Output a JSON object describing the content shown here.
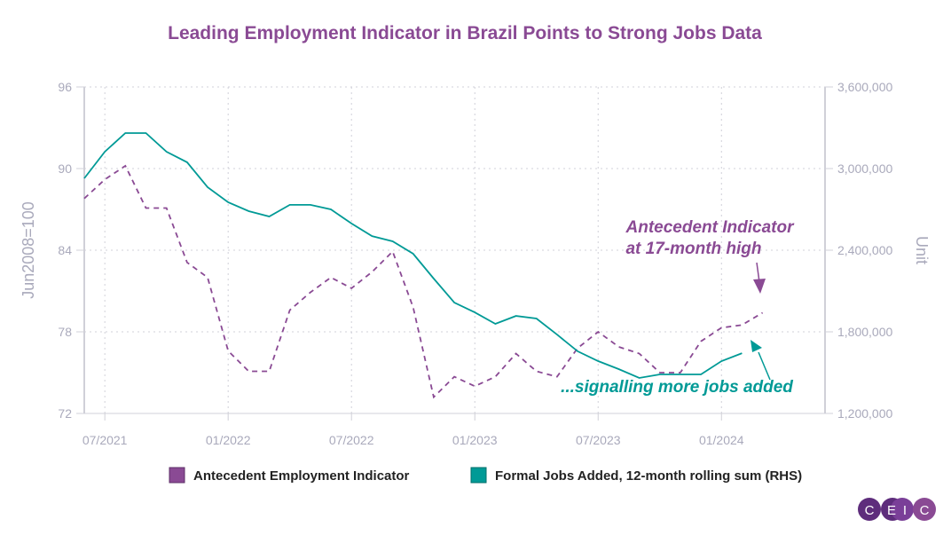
{
  "chart_data": {
    "type": "line",
    "title": "Leading Employment Indicator in Brazil Points to Strong Jobs Data",
    "ylabel": "Jun2008=100",
    "y2label": "Unit",
    "ylim": [
      72,
      96
    ],
    "y2lim": [
      1200000,
      3600000
    ],
    "yticks": [
      "96",
      "90",
      "84",
      "78",
      "72"
    ],
    "y2ticks": [
      "3,600,000",
      "3,000,000",
      "2,400,000",
      "1,800,000",
      "1,200,000"
    ],
    "xticks": [
      "07/2021",
      "01/2022",
      "07/2022",
      "01/2023",
      "07/2023",
      "01/2024"
    ],
    "x_start": "06/2021",
    "series": [
      {
        "name": "Antecedent Employment Indicator",
        "color": "#8a4a94",
        "axis": "left",
        "style": "dashed",
        "values": [
          87.8,
          89.2,
          90.2,
          87.1,
          87.1,
          83.1,
          82.0,
          76.6,
          75.1,
          75.1,
          79.6,
          80.9,
          82.0,
          81.2,
          82.4,
          83.9,
          79.8,
          73.2,
          74.7,
          74.0,
          74.7,
          76.4,
          75.1,
          74.7,
          76.8,
          78.0,
          76.9,
          76.4,
          75.0,
          75.0,
          77.3,
          78.3,
          78.5,
          79.4
        ]
      },
      {
        "name": "Formal Jobs Added, 12-month rolling sum (RHS)",
        "color": "#009a96",
        "axis": "right",
        "style": "solid",
        "values": [
          2928000,
          3124000,
          3261000,
          3261000,
          3124000,
          3046000,
          2863000,
          2752000,
          2687000,
          2648000,
          2733000,
          2733000,
          2700000,
          2596000,
          2504000,
          2465000,
          2374000,
          2191000,
          2015000,
          1943000,
          1859000,
          1917000,
          1898000,
          1780000,
          1657000,
          1585000,
          1526000,
          1461000,
          1487000,
          1487000,
          1487000,
          1585000,
          1643000
        ]
      }
    ],
    "annotations": [
      {
        "lines": [
          "Antecedent Indicator",
          "at 17-month high"
        ],
        "color": "#8a4a94"
      },
      {
        "lines": [
          "...signalling more jobs added"
        ],
        "color": "#009a96"
      }
    ]
  },
  "logo": {
    "letters": [
      "C",
      "E",
      "I",
      "C"
    ]
  }
}
